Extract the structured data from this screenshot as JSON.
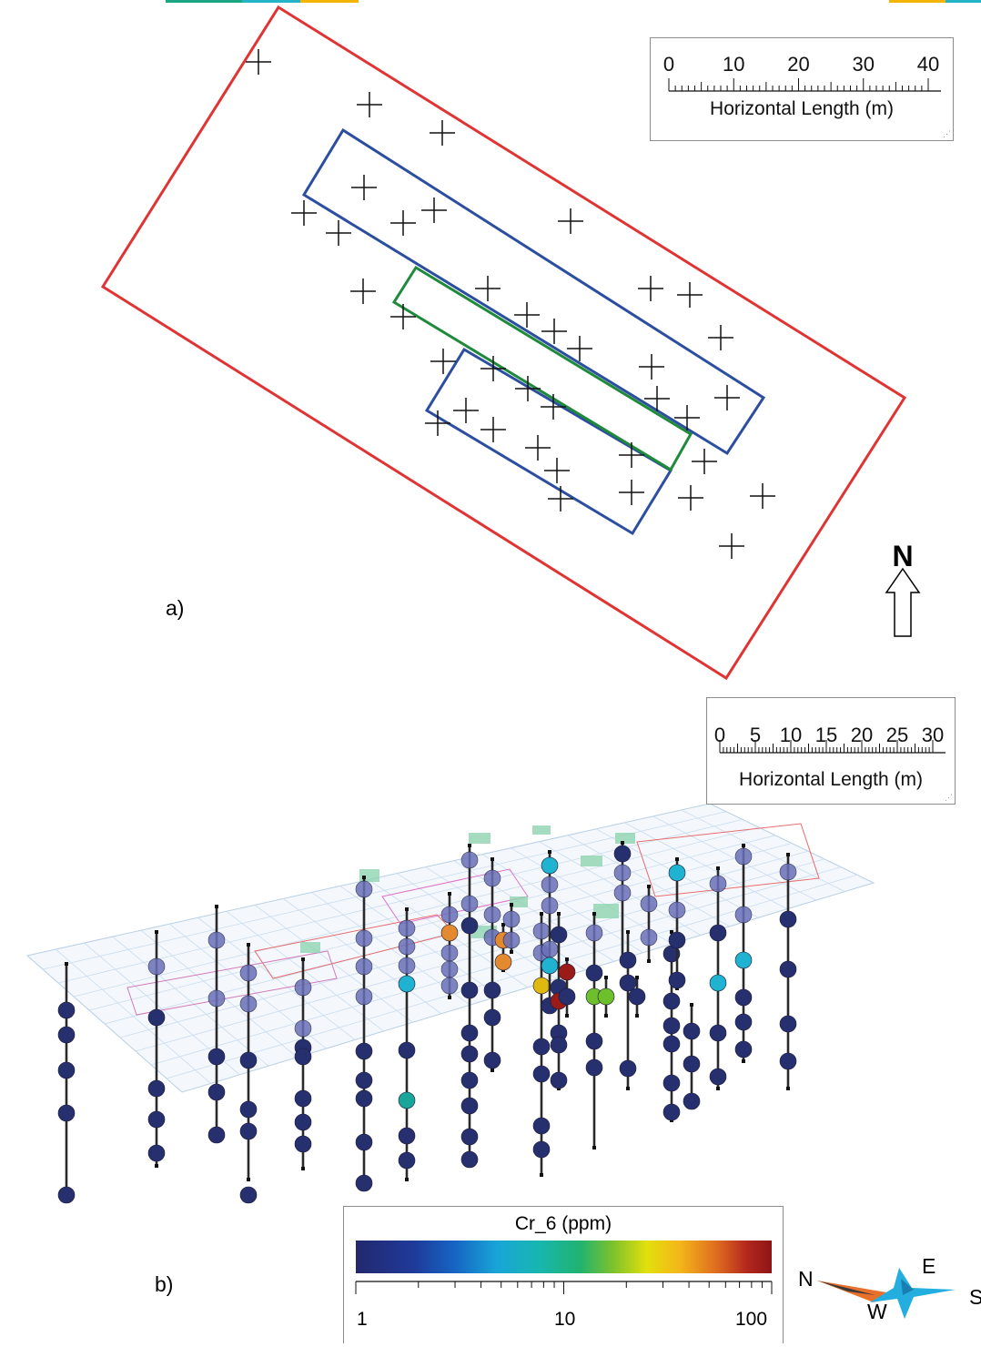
{
  "top_strip_colors": [
    "#1aa583",
    "#23b5c7",
    "#f5b400"
  ],
  "panel_a": {
    "label": "a)",
    "north_label": "N",
    "scale_bar": {
      "ticks": [
        "0",
        "10",
        "20",
        "30",
        "40"
      ],
      "title": "Horizontal Length (m)"
    },
    "outline_colors": {
      "outer": "#e03434",
      "inner": "#2c4ea0",
      "center": "#1e8a3a"
    }
  },
  "panel_b": {
    "label": "b)",
    "scale_bar": {
      "ticks": [
        "0",
        "5",
        "10",
        "15",
        "20",
        "25",
        "30"
      ],
      "title": "Horizontal Length (m)"
    },
    "legend": {
      "title": "Cr_6 (ppm)",
      "scale": "log",
      "tick_labels": [
        "1",
        "10",
        "100"
      ],
      "range": [
        1,
        100
      ]
    },
    "compass": {
      "north": "N",
      "east": "E",
      "south": "S",
      "west": "W"
    },
    "point_colors": {
      "low": "#27306f",
      "low_transparent": "#6a70b8",
      "cyan": "#1fb3d1",
      "teal": "#1aa59a",
      "green": "#6dbf2c",
      "orange": "#e38a30",
      "red": "#9b1b18",
      "yellow": "#e0b90f"
    }
  }
}
